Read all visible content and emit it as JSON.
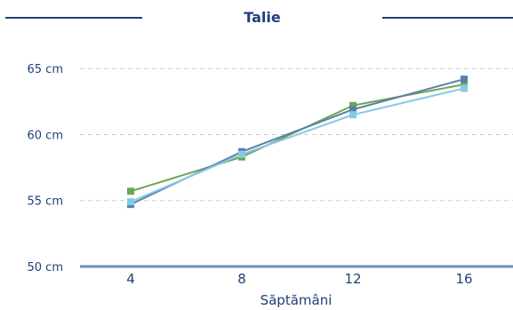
{
  "chart_data": {
    "type": "line",
    "title": "Talie",
    "xlabel": "Săptămâni",
    "ylabel": "",
    "x": [
      4,
      8,
      12,
      16
    ],
    "x_tick_labels": [
      "4",
      "8",
      "12",
      "16"
    ],
    "ylim": [
      50,
      67
    ],
    "y_ticks": [
      50,
      55,
      60,
      65
    ],
    "y_tick_labels": [
      "50 cm",
      "55 cm",
      "60 cm",
      "65 cm"
    ],
    "grid": true,
    "legend": "none",
    "series": [
      {
        "color": "#6fa552",
        "values": [
          55.7,
          58.3,
          62.2,
          63.8
        ]
      },
      {
        "color": "#5b7fa8",
        "values": [
          54.7,
          58.7,
          61.9,
          64.2
        ]
      },
      {
        "color": "#87c8e8",
        "values": [
          54.9,
          58.5,
          61.5,
          63.5
        ]
      }
    ],
    "colors": {
      "text": "#1f3f7a",
      "title_rule": "#1f3f7a",
      "grid": "#c5cfe0",
      "axis": "#6d8db5"
    }
  }
}
